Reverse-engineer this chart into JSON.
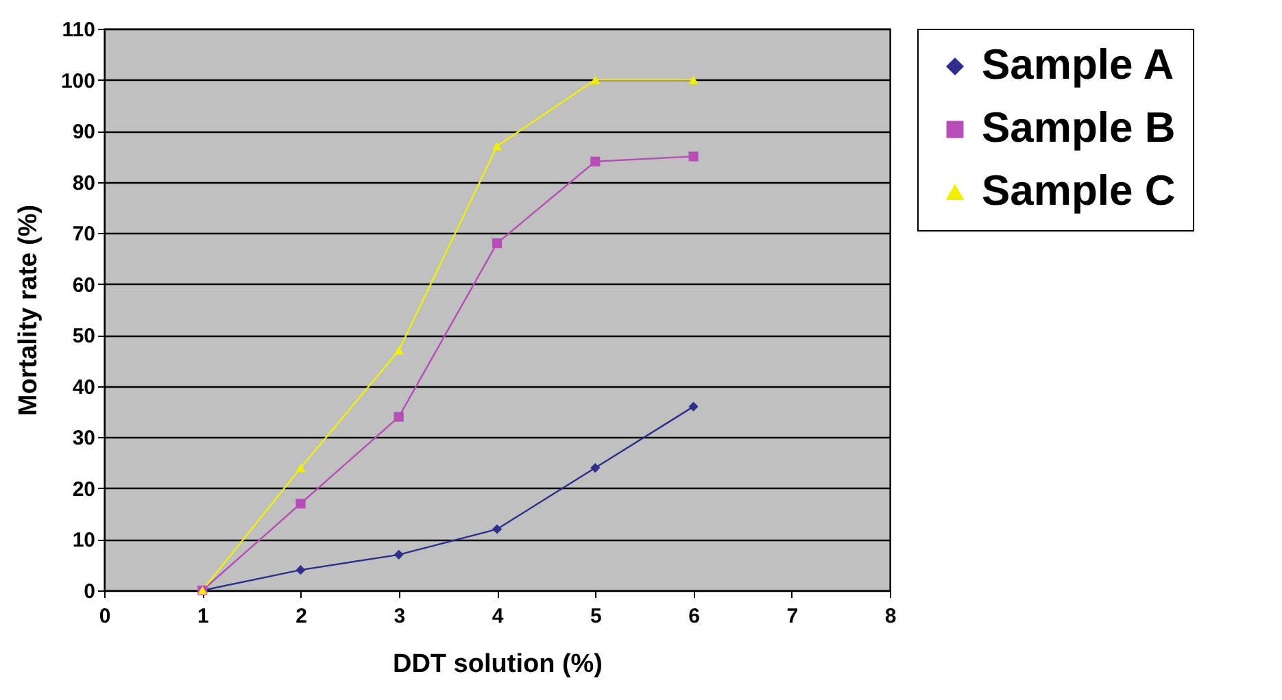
{
  "chart_data": {
    "type": "line",
    "xlabel": "DDT solution (%)",
    "ylabel": "Mortality rate (%)",
    "x": [
      1,
      2,
      3,
      4,
      5,
      6
    ],
    "series": [
      {
        "name": "Sample A",
        "color": "#2e2e8c",
        "marker": "diamond",
        "values": [
          0,
          4,
          7,
          12,
          24,
          36
        ]
      },
      {
        "name": "Sample B",
        "color": "#b84db8",
        "marker": "square",
        "values": [
          0,
          17,
          34,
          68,
          84,
          85
        ]
      },
      {
        "name": "Sample C",
        "color": "#f0f000",
        "marker": "triangle",
        "values": [
          0,
          24,
          47,
          87,
          100,
          100
        ]
      }
    ],
    "xlim": [
      0,
      8
    ],
    "xticks": [
      0,
      1,
      2,
      3,
      4,
      5,
      6,
      7,
      8
    ],
    "ylim": [
      0,
      110
    ],
    "yticks": [
      0,
      10,
      20,
      30,
      40,
      50,
      60,
      70,
      80,
      90,
      100,
      110
    ],
    "grid": "y",
    "legend": "right",
    "line_style": "solid"
  }
}
